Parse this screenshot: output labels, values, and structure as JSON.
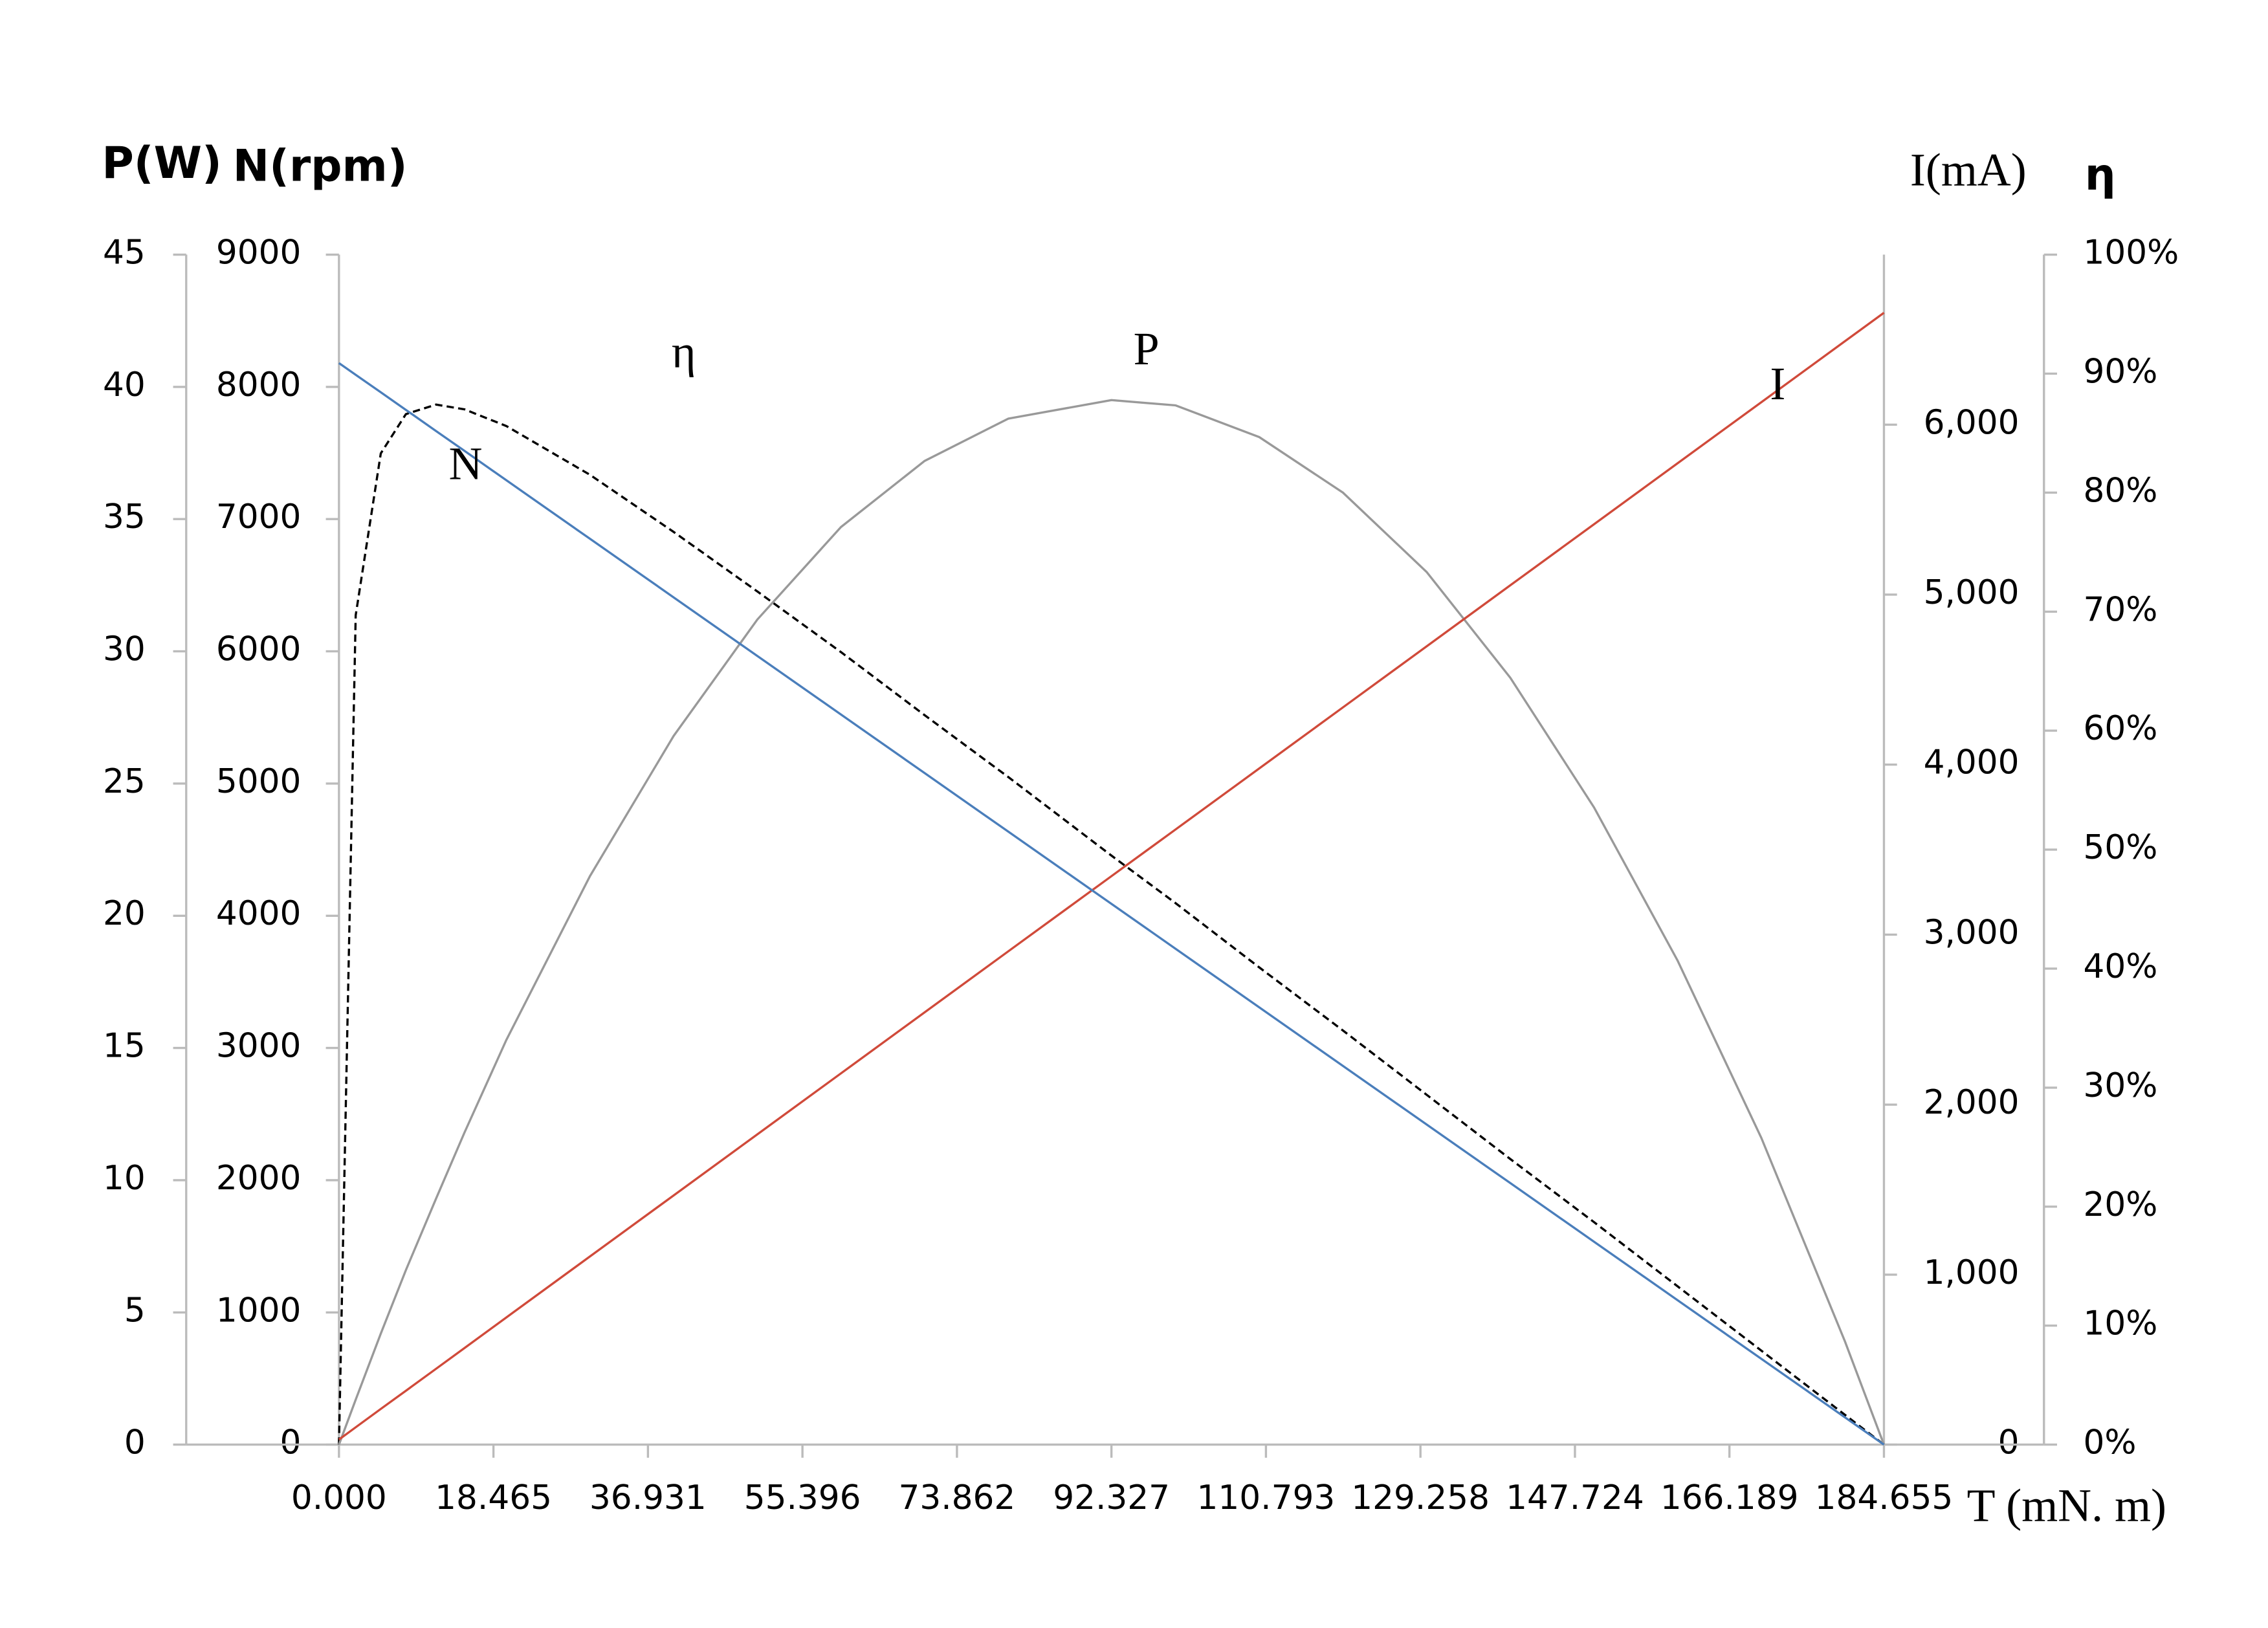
{
  "chart_data": {
    "type": "line",
    "ylabel": "P(W)",
    "y2label": "N(rpm)",
    "y3label": "I(mA)",
    "y4label": "η",
    "xlabel": "T (mN. m)",
    "x": [
      0,
      2,
      5,
      8,
      11.6,
      15,
      20,
      30,
      40,
      50,
      60,
      70,
      80,
      92.327,
      100,
      110,
      120,
      130,
      140,
      150,
      160,
      170,
      180,
      184.655
    ],
    "xlim": [
      0,
      184.655
    ],
    "xticks": [
      {
        "value": 0,
        "label": "0.000"
      },
      18.465,
      36.931,
      55.396,
      73.862,
      92.327,
      110.793,
      129.258,
      147.724,
      166.189,
      184.655
    ],
    "ylim": [
      0,
      45
    ],
    "yticks": [
      0,
      5,
      10,
      15,
      20,
      25,
      30,
      35,
      40,
      45
    ],
    "y2lim": [
      0,
      9000
    ],
    "y2ticks": [
      0,
      1000,
      2000,
      3000,
      4000,
      5000,
      6000,
      7000,
      8000,
      9000
    ],
    "y3lim": [
      0,
      7000
    ],
    "y3ticks": [
      0,
      {
        "value": 1000,
        "label": "1,000"
      },
      {
        "value": 2000,
        "label": "2,000"
      },
      {
        "value": 3000,
        "label": "3,000"
      },
      {
        "value": 4000,
        "label": "4,000"
      },
      {
        "value": 5000,
        "label": "5,000"
      },
      {
        "value": 6000,
        "label": "6,000"
      }
    ],
    "y4lim": [
      0,
      100
    ],
    "y4ticks": [
      {
        "value": 0,
        "label": "0%"
      },
      {
        "value": 10,
        "label": "10%"
      },
      {
        "value": 20,
        "label": "20%"
      },
      {
        "value": 30,
        "label": "30%"
      },
      {
        "value": 40,
        "label": "40%"
      },
      {
        "value": 50,
        "label": "50%"
      },
      {
        "value": 60,
        "label": "60%"
      },
      {
        "value": 70,
        "label": "70%"
      },
      {
        "value": 80,
        "label": "80%"
      },
      {
        "value": 90,
        "label": "90%"
      },
      {
        "value": 100,
        "label": "100%"
      }
    ],
    "series": [
      {
        "name": "η",
        "axis": "y4",
        "color": "#000000",
        "line_style": "dashed",
        "values": [
          0,
          69.7,
          83.3,
          86.6,
          87.4,
          87.0,
          85.6,
          81.5,
          76.7,
          71.7,
          66.6,
          61.3,
          56.1,
          49.5,
          45.5,
          40.1,
          34.8,
          29.4,
          24.0,
          18.7,
          13.3,
          7.9,
          2.5,
          0
        ]
      },
      {
        "name": "P",
        "axis": "y",
        "color": "#999999",
        "line_style": "solid",
        "values": [
          0,
          1.7,
          4.2,
          6.6,
          9.3,
          11.8,
          15.3,
          21.5,
          26.8,
          31.2,
          34.7,
          37.2,
          38.8,
          39.5,
          39.3,
          38.1,
          36.0,
          33.0,
          29.0,
          24.1,
          18.3,
          11.6,
          3.9,
          0
        ]
      },
      {
        "name": "I",
        "axis": "y3",
        "color": "#d04a3a",
        "line_style": "solid",
        "values": [
          30,
          102,
          210,
          317,
          446,
          568,
          748,
          1107,
          1466,
          1825,
          2184,
          2543,
          2902,
          3344,
          3619,
          3978,
          4337,
          4696,
          5055,
          5414,
          5773,
          6132,
          6491,
          6658
        ]
      },
      {
        "name": "N",
        "axis": "y2",
        "color": "#4a7ebb",
        "line_style": "solid",
        "values": [
          8180,
          8091,
          7959,
          7826,
          7666,
          7516,
          7294,
          6851,
          6408,
          5965,
          5522,
          5079,
          4636,
          4090,
          3750,
          3307,
          2864,
          2421,
          1978,
          1535,
          1092,
          649,
          206,
          0
        ]
      }
    ]
  }
}
